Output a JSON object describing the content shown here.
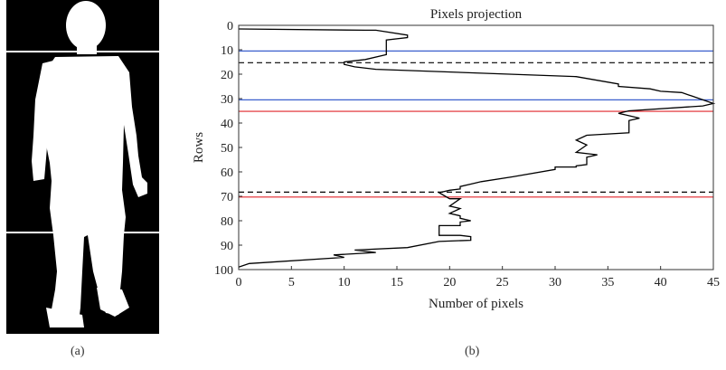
{
  "panel_a": {
    "caption": "(a)",
    "image_desc": "white human silhouette on black background",
    "divider_lines": 2
  },
  "panel_b": {
    "caption": "(b)"
  },
  "colors": {
    "profile": "#000000",
    "blue_marker": "#3a5fcd",
    "red_marker": "#e0242a",
    "dashed_marker": "#000000",
    "silhouette_bg": "#000000",
    "silhouette_fg": "#ffffff"
  },
  "chart_data": {
    "type": "line",
    "title": "Pixels projection",
    "xlabel": "Number of pixels",
    "ylabel": "Rows",
    "xlim": [
      0,
      45
    ],
    "ylim": [
      0,
      100
    ],
    "y_inverted": true,
    "xticks": [
      0,
      5,
      10,
      15,
      20,
      25,
      30,
      35,
      40,
      45
    ],
    "yticks": [
      0,
      10,
      20,
      30,
      40,
      50,
      60,
      70,
      80,
      90,
      100
    ],
    "grid": false,
    "series": [
      {
        "x": [
          0,
          12,
          13,
          16,
          16,
          14,
          14,
          12,
          10,
          10,
          11,
          13,
          32,
          36,
          36,
          39,
          40,
          42,
          43,
          45,
          44,
          37,
          36,
          37,
          38,
          37,
          37,
          33,
          32,
          33,
          32,
          34,
          33,
          33,
          33,
          32,
          32,
          30,
          30,
          26,
          23,
          22,
          21,
          21,
          20,
          19,
          20,
          21,
          20,
          21,
          20,
          21,
          21,
          22,
          21,
          21,
          19,
          19,
          21,
          22,
          22,
          22,
          19,
          16,
          11,
          13,
          9,
          10,
          1,
          0
        ],
        "y": [
          1.5,
          2,
          2,
          4,
          5,
          6,
          12,
          14,
          15,
          16,
          17,
          18,
          21,
          24,
          25,
          26,
          27,
          27.5,
          29,
          32,
          33,
          35,
          36,
          37,
          38,
          39,
          44,
          45,
          47,
          49,
          52,
          53,
          54,
          55,
          57,
          57.5,
          58,
          58,
          59,
          62,
          64,
          65,
          66,
          67,
          67.5,
          68.5,
          71,
          71,
          74,
          75,
          77,
          78,
          79,
          80,
          80.5,
          82,
          82,
          86,
          86,
          86.5,
          87,
          88,
          88.5,
          91,
          92,
          93,
          94,
          95,
          97.5,
          99
        ]
      }
    ],
    "marker_lines": [
      {
        "y": 10.5,
        "color": "blue",
        "style": "solid"
      },
      {
        "y": 15.3,
        "color": "black",
        "style": "dashed"
      },
      {
        "y": 30.5,
        "color": "blue",
        "style": "solid"
      },
      {
        "y": 35.2,
        "color": "red",
        "style": "solid"
      },
      {
        "y": 68.3,
        "color": "black",
        "style": "dashed"
      },
      {
        "y": 70.3,
        "color": "red",
        "style": "solid"
      }
    ]
  }
}
